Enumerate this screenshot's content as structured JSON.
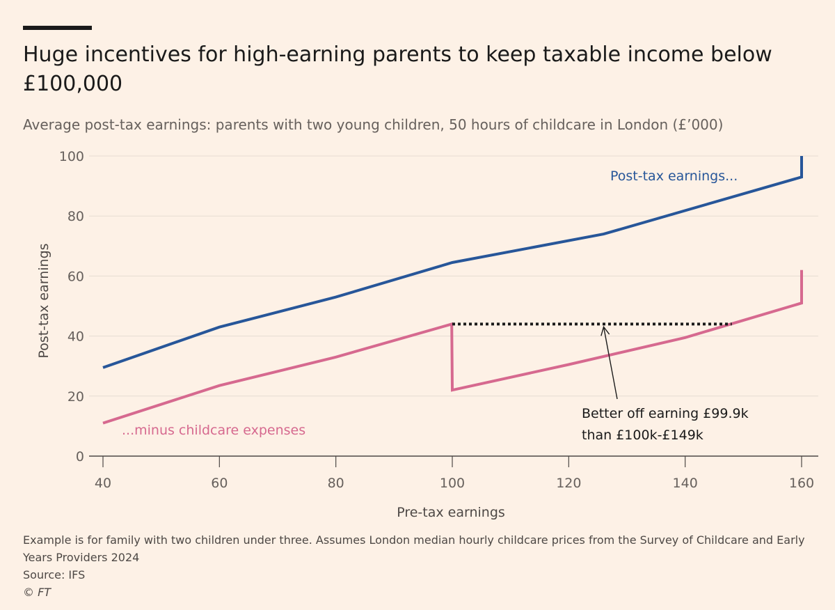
{
  "title": "Huge incentives for high-earning parents to keep taxable income below £100,000",
  "subtitle": "Average post-tax earnings: parents with two young children, 50 hours of childcare in London (£’000)",
  "footer": {
    "note": "Example is for family with two children under three. Assumes London median hourly childcare prices from the Survey of Childcare and Early Years Providers 2024",
    "source": "Source: IFS",
    "copyright": "© FT"
  },
  "colors": {
    "background": "#fdf1e6",
    "post_tax": "#275699",
    "minus_childcare": "#d6698f",
    "grid": "#e6dcd2",
    "annotation": "#1a1a1a"
  },
  "chart_data": {
    "type": "line",
    "xlabel": "Pre-tax earnings",
    "ylabel": "Post-tax earnings",
    "xlim": [
      40,
      160
    ],
    "ylim": [
      0,
      100
    ],
    "x_ticks": [
      40,
      60,
      80,
      100,
      120,
      140,
      160
    ],
    "y_ticks": [
      0,
      20,
      40,
      60,
      80,
      100
    ],
    "grid": "horizontal",
    "series": [
      {
        "name": "Post-tax earnings...",
        "color": "#275699",
        "points": [
          [
            40,
            29.5
          ],
          [
            60,
            43
          ],
          [
            80,
            53
          ],
          [
            100,
            64.5
          ],
          [
            126,
            74
          ],
          [
            160,
            93
          ],
          [
            160,
            100
          ]
        ]
      },
      {
        "name": "...minus childcare expenses",
        "color": "#d6698f",
        "points": [
          [
            40,
            11
          ],
          [
            60,
            23.5
          ],
          [
            80,
            33
          ],
          [
            99.9,
            44
          ],
          [
            100,
            22
          ],
          [
            120,
            30.5
          ],
          [
            140,
            39.5
          ],
          [
            160,
            51
          ],
          [
            160,
            62
          ]
        ]
      }
    ],
    "annotations": [
      {
        "text_lines": [
          "Better off earning £99.9k",
          "than £100k-£149k"
        ],
        "reference_line": {
          "x": [
            100,
            148
          ],
          "y": 44,
          "style": "dotted"
        },
        "arrow_to": [
          126,
          44
        ]
      }
    ]
  }
}
